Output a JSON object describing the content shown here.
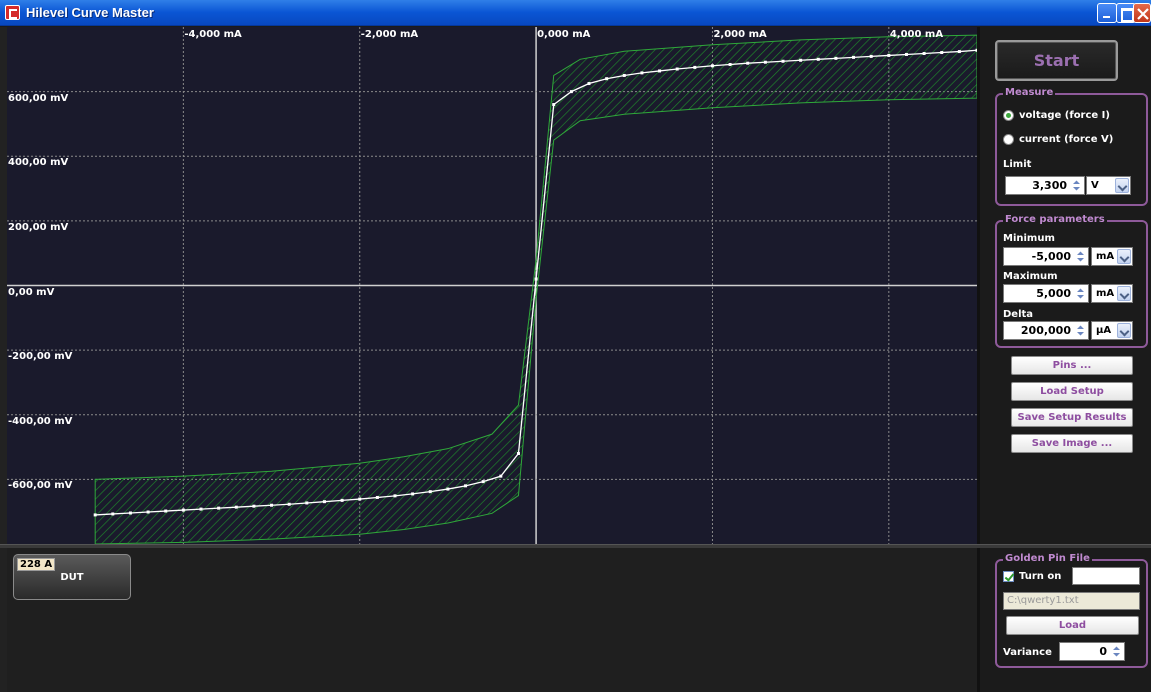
{
  "window": {
    "title": "Hilevel Curve Master"
  },
  "chart_data": {
    "type": "line",
    "title": "",
    "xlabel": "",
    "ylabel": "",
    "x_ticks": [
      "-4,000 mA",
      "-2,000 mA",
      "0,000 mA",
      "2,000 mA",
      "4,000 mA"
    ],
    "y_ticks": [
      "600,00 mV",
      "400,00 mV",
      "200,00 mV",
      "0,00 mV",
      "-200,00 mV",
      "-400,00 mV",
      "-600,00 mV"
    ],
    "xlim": [
      -6.0,
      5.0
    ],
    "ylim": [
      -800,
      800
    ],
    "x_unit": "mA",
    "y_unit": "mV",
    "grid": true,
    "series": [
      {
        "type": "line+points",
        "color": "#ffffff",
        "x": [
          -5.0,
          -4.8,
          -4.6,
          -4.4,
          -4.2,
          -4.0,
          -3.8,
          -3.6,
          -3.4,
          -3.2,
          -3.0,
          -2.8,
          -2.6,
          -2.4,
          -2.2,
          -2.0,
          -1.8,
          -1.6,
          -1.4,
          -1.2,
          -1.0,
          -0.8,
          -0.6,
          -0.4,
          -0.2,
          0.0,
          0.2,
          0.4,
          0.6,
          0.8,
          1.0,
          1.2,
          1.4,
          1.6,
          1.8,
          2.0,
          2.2,
          2.4,
          2.6,
          2.8,
          3.0,
          3.2,
          3.4,
          3.6,
          3.8,
          4.0,
          4.2,
          4.4,
          4.6,
          4.8,
          5.0
        ],
        "y": [
          -710,
          -707,
          -704,
          -701,
          -698,
          -695,
          -692,
          -689,
          -686,
          -683,
          -680,
          -677,
          -673,
          -669,
          -665,
          -661,
          -656,
          -651,
          -645,
          -638,
          -630,
          -620,
          -607,
          -590,
          -520,
          20,
          560,
          600,
          625,
          640,
          650,
          658,
          664,
          670,
          675,
          680,
          684,
          688,
          691,
          694,
          697,
          700,
          703,
          706,
          709,
          712,
          715,
          718,
          721,
          724,
          728
        ]
      }
    ],
    "tolerance_band": {
      "color": "#1f8a2a",
      "x": [
        -5.0,
        -4.0,
        -3.0,
        -2.0,
        -1.5,
        -1.0,
        -0.5,
        -0.2,
        0.0,
        0.2,
        0.5,
        1.0,
        2.0,
        3.0,
        4.0,
        5.0
      ],
      "upper": [
        -600,
        -590,
        -575,
        -550,
        -530,
        -505,
        -460,
        -370,
        80,
        650,
        700,
        725,
        745,
        760,
        770,
        775
      ],
      "lower": [
        -800,
        -795,
        -785,
        -770,
        -755,
        -735,
        -705,
        -650,
        -40,
        450,
        510,
        530,
        550,
        565,
        575,
        580
      ]
    }
  },
  "panel": {
    "start_label": "Start",
    "measure": {
      "legend": "Measure",
      "option_voltage": "voltage (force I)",
      "option_current": "current (force V)",
      "selected": "voltage (force I)",
      "limit_label": "Limit",
      "limit_value": "3,300",
      "limit_unit": "V"
    },
    "force": {
      "legend": "Force parameters",
      "min_label": "Minimum",
      "min_value": "-5,000",
      "min_unit": "mA",
      "max_label": "Maximum",
      "max_value": "5,000",
      "max_unit": "mA",
      "delta_label": "Delta",
      "delta_value": "200,000",
      "delta_unit": "µA"
    },
    "buttons": {
      "pins": "Pins ...",
      "load_setup": "Load Setup",
      "save_setup_results": "Save Setup Results",
      "save_image": "Save Image ..."
    }
  },
  "dut": {
    "pin_label": "228 A",
    "name": "DUT"
  },
  "golden": {
    "legend": "Golden Pin File",
    "turn_on_label": "Turn on",
    "turn_on_checked": true,
    "turn_on_value": "",
    "file_path": "C:\\qwerty1.txt",
    "load_label": "Load",
    "variance_label": "Variance",
    "variance_value": "0"
  }
}
